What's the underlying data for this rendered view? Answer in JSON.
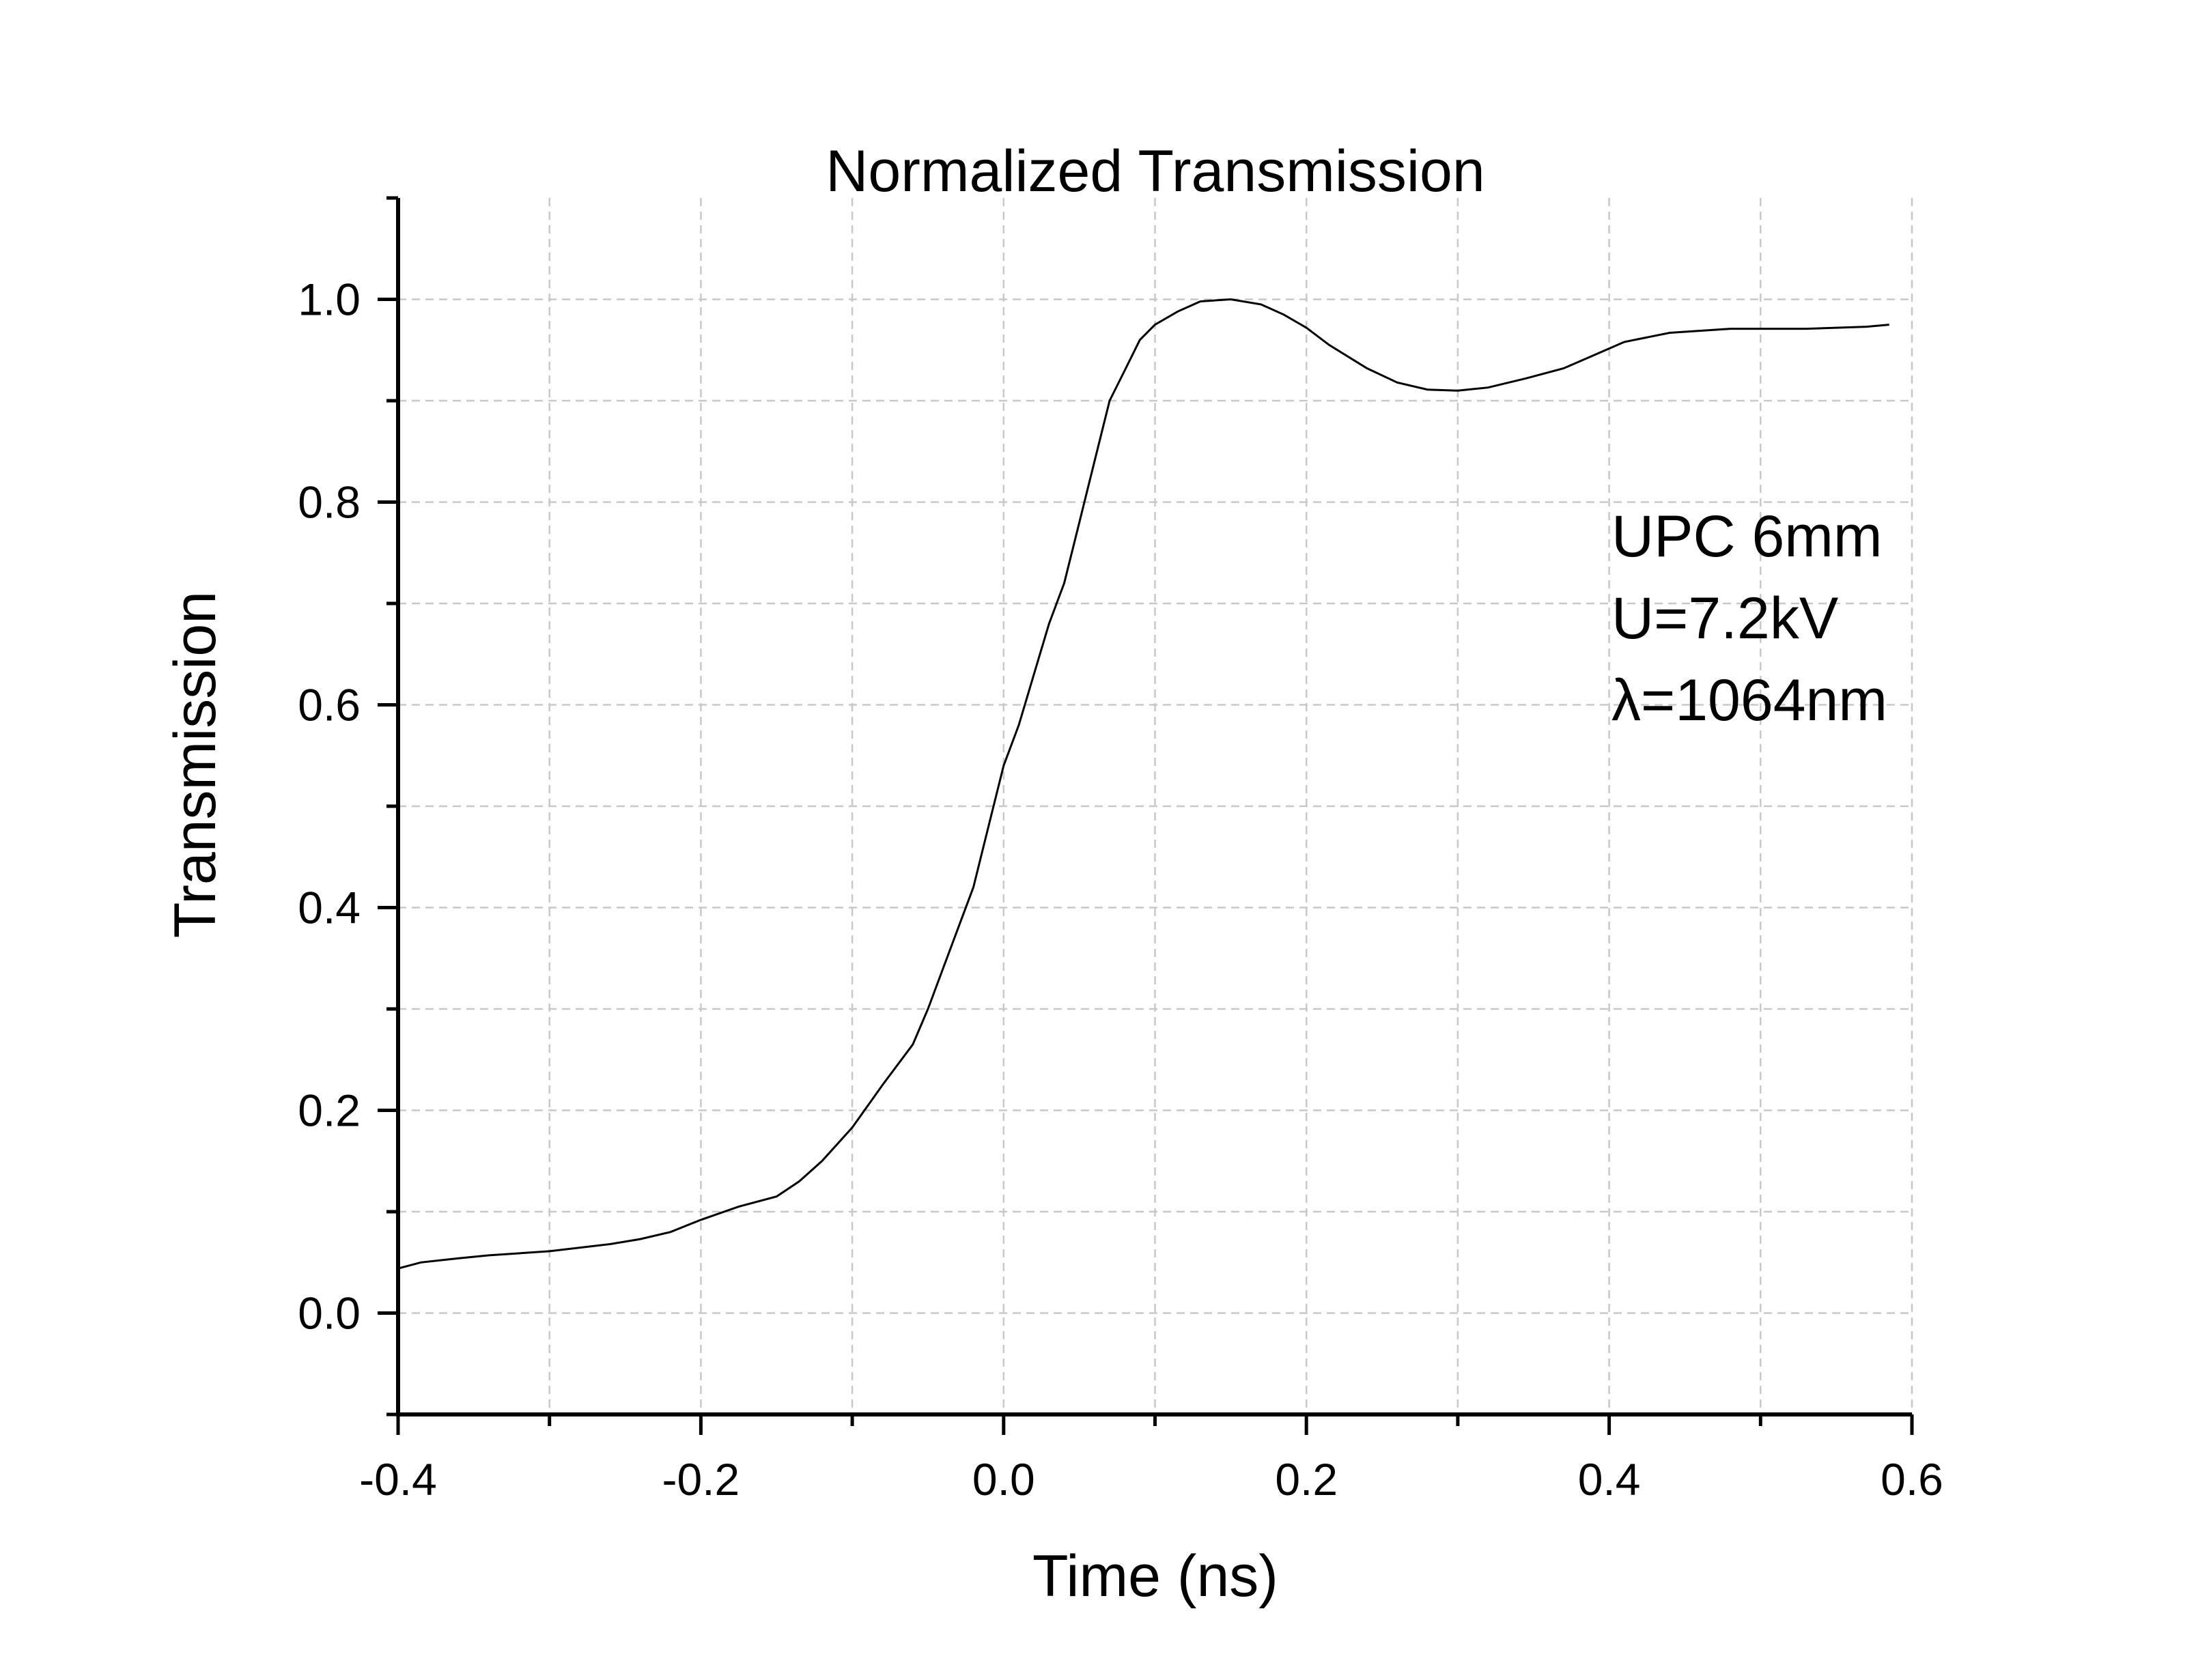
{
  "chart_data": {
    "type": "line",
    "title": "Normalized Transmission",
    "xlabel": "Time (ns)",
    "ylabel": "Transmission",
    "xlim": [
      -0.4,
      0.6
    ],
    "ylim": [
      -0.1,
      1.1
    ],
    "grid": true,
    "x_ticks": [
      -0.4,
      -0.2,
      0.0,
      0.2,
      0.4,
      0.6
    ],
    "x_tick_labels": [
      "-0.4",
      "-0.2",
      "0.0",
      "0.2",
      "0.4",
      "0.6"
    ],
    "x_minor_ticks": [
      -0.3,
      -0.1,
      0.1,
      0.3,
      0.5
    ],
    "y_ticks": [
      0.0,
      0.2,
      0.4,
      0.6,
      0.8,
      1.0
    ],
    "y_tick_labels": [
      "0.0",
      "0.2",
      "0.4",
      "0.6",
      "0.8",
      "1.0"
    ],
    "y_minor_ticks": [
      -0.1,
      0.1,
      0.3,
      0.5,
      0.7,
      0.9,
      1.1
    ],
    "annotations": [
      "UPC 6mm",
      "U=7.2kV",
      "λ=1064nm"
    ],
    "annotation_placement": "right",
    "series": [
      {
        "color": "#000000",
        "x": [
          -0.4,
          -0.385,
          -0.36,
          -0.34,
          -0.3,
          -0.26,
          -0.24,
          -0.22,
          -0.2,
          -0.175,
          -0.15,
          -0.135,
          -0.12,
          -0.1,
          -0.08,
          -0.06,
          -0.05,
          -0.04,
          -0.03,
          -0.02,
          -0.01,
          0.0,
          0.01,
          0.02,
          0.03,
          0.035,
          0.04,
          0.05,
          0.06,
          0.07,
          0.08,
          0.09,
          0.1,
          0.115,
          0.13,
          0.15,
          0.17,
          0.185,
          0.2,
          0.215,
          0.24,
          0.26,
          0.28,
          0.3,
          0.32,
          0.345,
          0.37,
          0.39,
          0.41,
          0.44,
          0.48,
          0.53,
          0.57,
          0.585
        ],
        "y": [
          0.044,
          0.05,
          0.054,
          0.057,
          0.061,
          0.068,
          0.073,
          0.08,
          0.092,
          0.105,
          0.115,
          0.13,
          0.15,
          0.183,
          0.225,
          0.265,
          0.3,
          0.34,
          0.38,
          0.42,
          0.48,
          0.54,
          0.58,
          0.63,
          0.68,
          0.7,
          0.72,
          0.78,
          0.84,
          0.9,
          0.93,
          0.96,
          0.975,
          0.988,
          0.998,
          1.0,
          0.995,
          0.985,
          0.972,
          0.955,
          0.932,
          0.918,
          0.911,
          0.91,
          0.913,
          0.922,
          0.932,
          0.945,
          0.958,
          0.967,
          0.971,
          0.971,
          0.973,
          0.975
        ]
      }
    ]
  }
}
